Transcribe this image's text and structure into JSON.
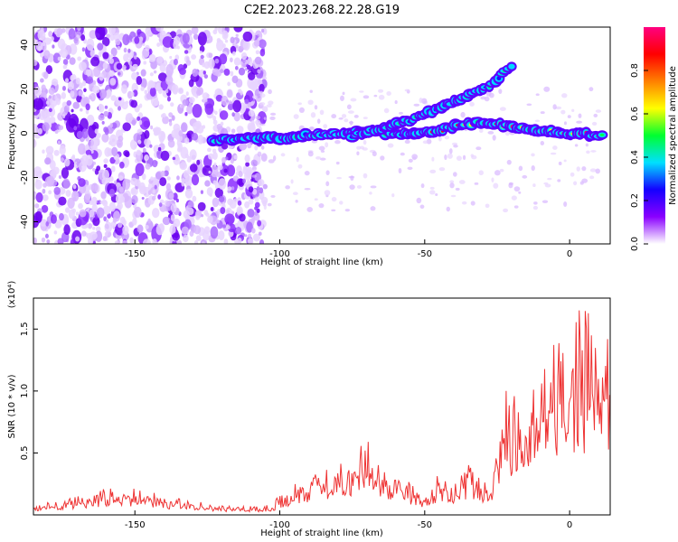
{
  "chart_data": [
    {
      "type": "heatmap",
      "title": "C2E2.2023.268.22.28.G19",
      "xlabel": "Height of straight line (km)",
      "ylabel": "Frequency (Hz)",
      "xlim": [
        -185,
        14
      ],
      "ylim": [
        -50,
        48
      ],
      "xticks": [
        -150,
        -100,
        -50,
        0
      ],
      "yticks": [
        -40,
        -20,
        0,
        20,
        40
      ],
      "colorbar": {
        "label": "Normalized spectral amplitude",
        "range": [
          0,
          1
        ],
        "ticks": [
          "0.0",
          "0.2",
          "0.4",
          "0.6",
          "0.8"
        ],
        "colors": [
          "#ffffff",
          "#8a00ff",
          "#1400ff",
          "#00e0ff",
          "#00ff30",
          "#ffff00",
          "#ff8000",
          "#ff0000",
          "#ff0080"
        ]
      },
      "ridges": [
        {
          "x": [
            -123,
            -110,
            -100,
            -90,
            -80,
            -70,
            -60,
            -50,
            -40,
            -30,
            -25,
            -20,
            -10,
            0,
            12
          ],
          "freq": [
            -3,
            -2,
            -2,
            -1,
            0,
            1,
            0,
            0,
            3,
            5,
            4,
            3,
            1,
            0,
            -1
          ]
        },
        {
          "x": [
            -75,
            -65,
            -55,
            -45,
            -35,
            -28,
            -20
          ],
          "freq": [
            -1,
            2,
            6,
            11,
            17,
            21,
            30
          ]
        }
      ]
    },
    {
      "type": "line",
      "xlabel": "Height of straight line (km)",
      "ylabel": "SNR (10 * v/v)",
      "multiplier": "(x10⁴)",
      "xlim": [
        -185,
        14
      ],
      "ylim": [
        0,
        1.75
      ],
      "xticks": [
        -150,
        -100,
        -50,
        0
      ],
      "yticks": [
        0.5,
        1.0,
        1.5
      ],
      "series": [
        {
          "color": "#ee3333",
          "x": [
            -185,
            -175,
            -165,
            -158,
            -150,
            -140,
            -130,
            -120,
            -110,
            -103,
            -98,
            -90,
            -80,
            -70,
            -65,
            -60,
            -50,
            -45,
            -40,
            -35,
            -30,
            -27,
            -25,
            -22,
            -20,
            -18,
            -15,
            -10,
            -5,
            0,
            3,
            5,
            7,
            9,
            11,
            14
          ],
          "y": [
            0.06,
            0.09,
            0.13,
            0.16,
            0.15,
            0.11,
            0.08,
            0.06,
            0.05,
            0.06,
            0.15,
            0.22,
            0.27,
            0.42,
            0.3,
            0.24,
            0.12,
            0.25,
            0.17,
            0.3,
            0.18,
            0.2,
            0.45,
            0.72,
            0.56,
            0.82,
            0.64,
            0.88,
            0.97,
            1.05,
            1.18,
            1.1,
            1.3,
            0.95,
            1.12,
            1.08
          ]
        }
      ]
    }
  ]
}
